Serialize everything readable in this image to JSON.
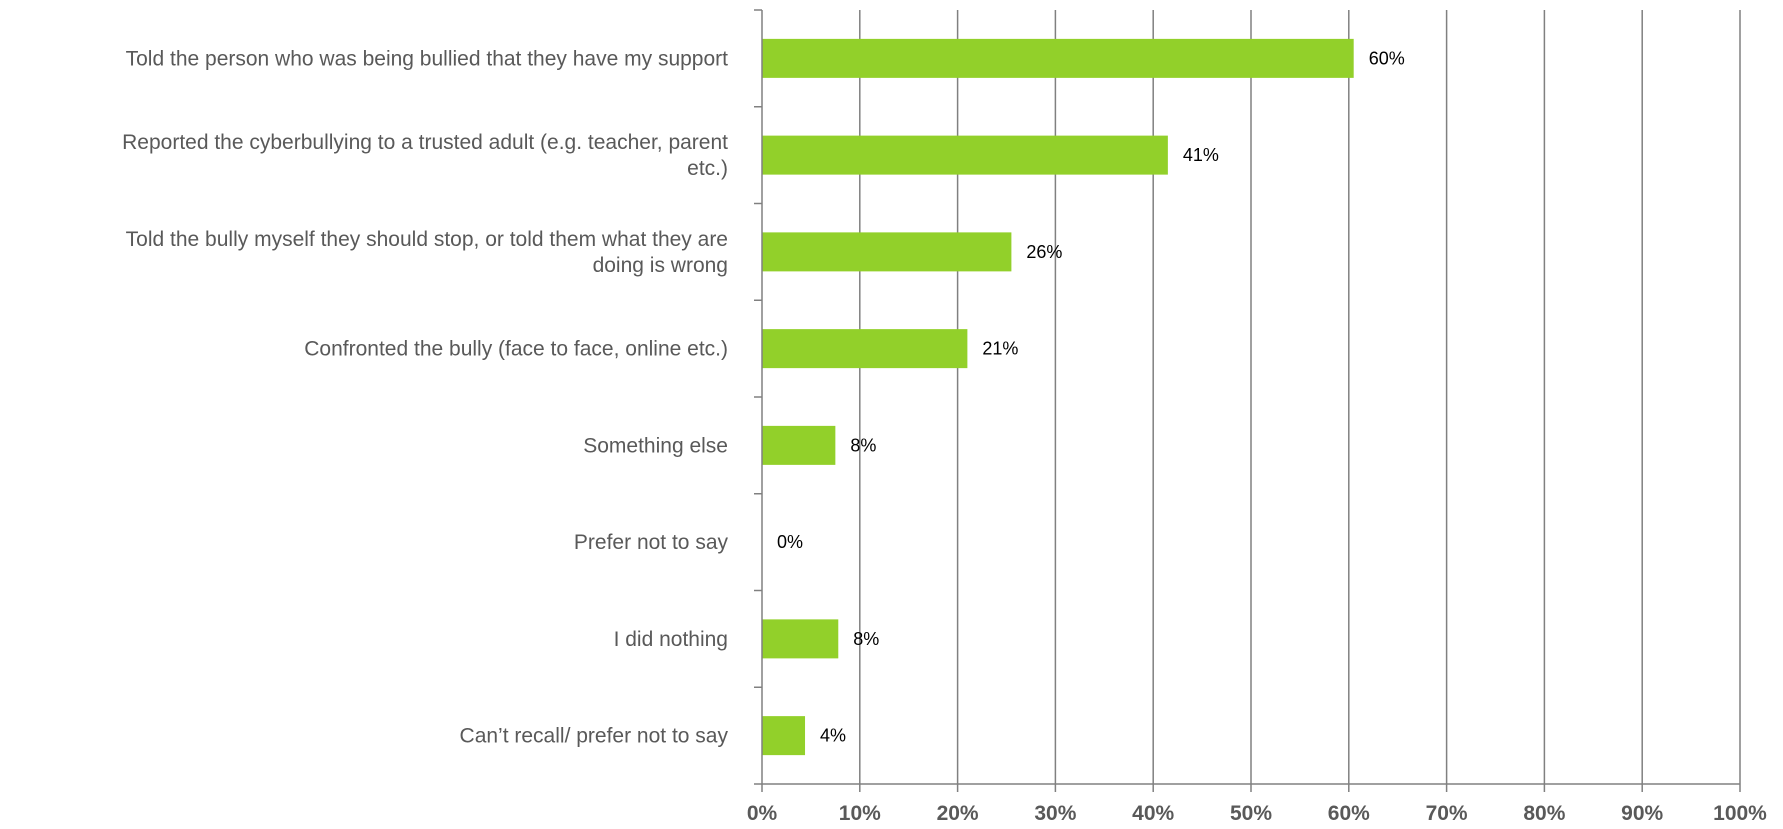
{
  "chart_data": {
    "type": "bar",
    "orientation": "horizontal",
    "categories": [
      [
        "Told the person who was being bullied that they have my support"
      ],
      [
        "Reported the cyberbullying to a trusted adult (e.g. teacher, parent",
        "etc.)"
      ],
      [
        "Told the bully myself they should stop, or told them what they are",
        "doing is wrong"
      ],
      [
        "Confronted the bully (face to face, online etc.)"
      ],
      [
        "Something else"
      ],
      [
        "Prefer not to say"
      ],
      [
        "I did nothing"
      ],
      [
        "Can’t recall/ prefer not to say"
      ]
    ],
    "values": [
      60.5,
      41.5,
      25.5,
      21,
      7.5,
      0,
      7.8,
      4.4
    ],
    "data_labels": [
      "60%",
      "41%",
      "26%",
      "21%",
      "8%",
      "0%",
      "8%",
      "4%"
    ],
    "xlim": [
      0,
      100
    ],
    "x_ticks": [
      0,
      10,
      20,
      30,
      40,
      50,
      60,
      70,
      80,
      90,
      100
    ],
    "x_tick_labels": [
      "0%",
      "10%",
      "20%",
      "30%",
      "40%",
      "50%",
      "60%",
      "70%",
      "80%",
      "90%",
      "100%"
    ],
    "title": "",
    "xlabel": "",
    "ylabel": "",
    "grid": "vertical",
    "legend": "none",
    "colors": {
      "bar": "#92d02a",
      "grid": "#808080",
      "axis": "#808080",
      "category_text": "#595959",
      "tick_text": "#595959",
      "data_label_text": "#000000"
    }
  }
}
